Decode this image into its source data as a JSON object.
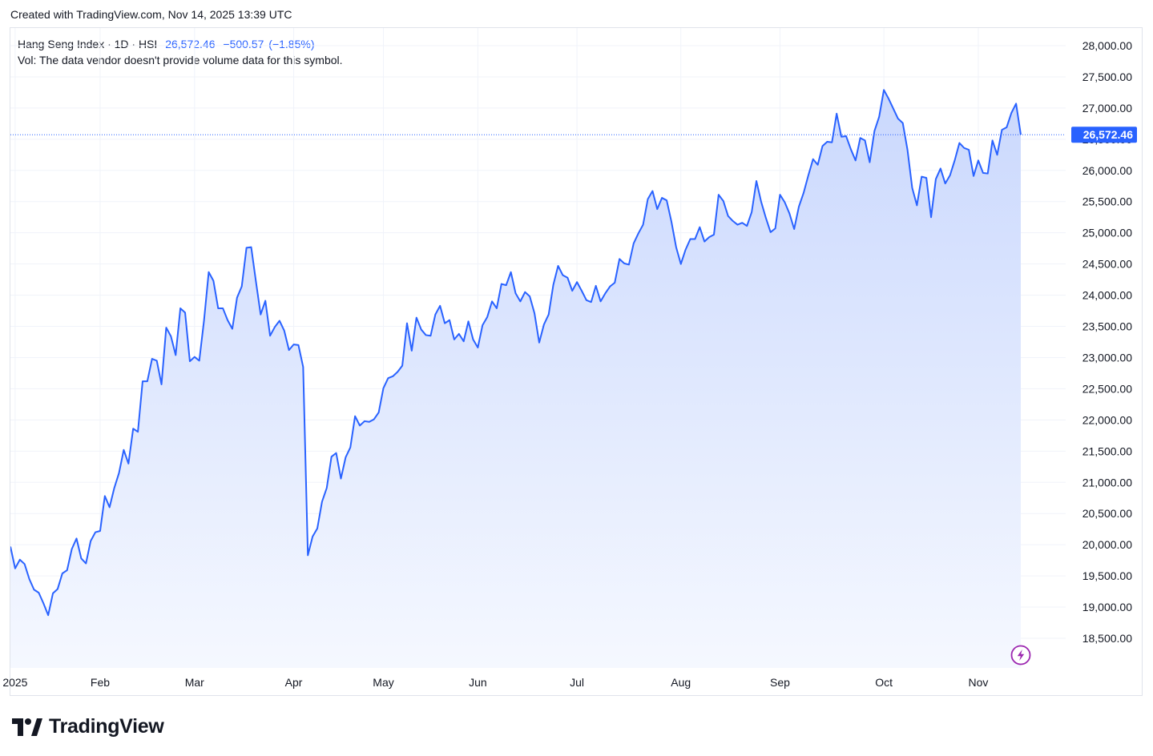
{
  "header": {
    "credit": "Created with TradingView.com, Nov 14, 2025 13:39 UTC"
  },
  "legend": {
    "symbol_line": "Hang Seng Index · 1D · HSI",
    "last": "26,572.46",
    "change": "−500.57",
    "change_pct": "(−1.85%)",
    "volume_note": "Vol: The data vendor doesn't provide volume data for this symbol."
  },
  "price_badge": "26,572.46",
  "brand": {
    "name": "TradingView",
    "logo_icon": "tradingview-logo-icon"
  },
  "realtime_icon": "lightning-icon",
  "colors": {
    "line": "#2962ff",
    "badge": "#2962ff",
    "area_top": "#cfdcfd",
    "area_bottom": "#f3f6ff",
    "grid": "#f0f3fa",
    "realtime": "#9c27b0"
  },
  "chart_data": {
    "type": "area",
    "title": "Hang Seng Index · 1D · HSI",
    "xlabel": "",
    "ylabel": "",
    "ylim": [
      18200,
      28300
    ],
    "grid": true,
    "legend_position": "top-left",
    "y_ticks": [
      18500,
      19000,
      19500,
      20000,
      20500,
      21000,
      21500,
      22000,
      22500,
      23000,
      23500,
      24000,
      24500,
      25000,
      25500,
      26000,
      26500,
      27000,
      27500,
      28000
    ],
    "y_tick_labels": [
      "18,500.00",
      "19,000.00",
      "19,500.00",
      "20,000.00",
      "20,500.00",
      "21,000.00",
      "21,500.00",
      "22,000.00",
      "22,500.00",
      "23,000.00",
      "23,500.00",
      "24,000.00",
      "24,500.00",
      "25,000.00",
      "25,500.00",
      "26,000.00",
      "26,500.00",
      "27,000.00",
      "27,500.00",
      "28,000.00"
    ],
    "x_ticks": [
      {
        "date": "2025-01-02",
        "label": "2025"
      },
      {
        "date": "2025-02-03",
        "label": "Feb"
      },
      {
        "date": "2025-03-03",
        "label": "Mar"
      },
      {
        "date": "2025-04-01",
        "label": "Apr"
      },
      {
        "date": "2025-05-02",
        "label": "May"
      },
      {
        "date": "2025-06-02",
        "label": "Jun"
      },
      {
        "date": "2025-07-02",
        "label": "Jul"
      },
      {
        "date": "2025-08-01",
        "label": "Aug"
      },
      {
        "date": "2025-09-01",
        "label": "Sep"
      },
      {
        "date": "2025-10-02",
        "label": "Oct"
      },
      {
        "date": "2025-11-03",
        "label": "Nov"
      }
    ],
    "last_value": 26572.46,
    "series": [
      {
        "x": [
          "2024-12-31",
          "2025-01-02",
          "2025-01-03",
          "2025-01-06",
          "2025-01-07",
          "2025-01-08",
          "2025-01-09",
          "2025-01-10",
          "2025-01-13",
          "2025-01-14",
          "2025-01-15",
          "2025-01-16",
          "2025-01-17",
          "2025-01-20",
          "2025-01-21",
          "2025-01-22",
          "2025-01-23",
          "2025-01-24",
          "2025-01-27",
          "2025-02-03",
          "2025-02-04",
          "2025-02-05",
          "2025-02-06",
          "2025-02-07",
          "2025-02-10",
          "2025-02-11",
          "2025-02-12",
          "2025-02-13",
          "2025-02-14",
          "2025-02-17",
          "2025-02-18",
          "2025-02-19",
          "2025-02-20",
          "2025-02-21",
          "2025-02-24",
          "2025-02-25",
          "2025-02-26",
          "2025-02-27",
          "2025-02-28",
          "2025-03-03",
          "2025-03-04",
          "2025-03-05",
          "2025-03-06",
          "2025-03-07",
          "2025-03-10",
          "2025-03-11",
          "2025-03-12",
          "2025-03-13",
          "2025-03-14",
          "2025-03-17",
          "2025-03-18",
          "2025-03-19",
          "2025-03-20",
          "2025-03-21",
          "2025-03-24",
          "2025-03-25",
          "2025-03-26",
          "2025-03-27",
          "2025-03-28",
          "2025-03-31",
          "2025-04-01",
          "2025-04-02",
          "2025-04-03",
          "2025-04-07",
          "2025-04-08",
          "2025-04-09",
          "2025-04-10",
          "2025-04-11",
          "2025-04-14",
          "2025-04-15",
          "2025-04-16",
          "2025-04-17",
          "2025-04-22",
          "2025-04-23",
          "2025-04-24",
          "2025-04-25",
          "2025-04-28",
          "2025-04-29",
          "2025-04-30",
          "2025-05-02",
          "2025-05-06",
          "2025-05-07",
          "2025-05-08",
          "2025-05-09",
          "2025-05-12",
          "2025-05-13",
          "2025-05-14",
          "2025-05-15",
          "2025-05-16",
          "2025-05-19",
          "2025-05-20",
          "2025-05-21",
          "2025-05-22",
          "2025-05-23",
          "2025-05-26",
          "2025-05-27",
          "2025-05-28",
          "2025-05-29",
          "2025-05-30",
          "2025-06-02",
          "2025-06-03",
          "2025-06-04",
          "2025-06-05",
          "2025-06-06",
          "2025-06-09",
          "2025-06-10",
          "2025-06-11",
          "2025-06-12",
          "2025-06-13",
          "2025-06-16",
          "2025-06-17",
          "2025-06-18",
          "2025-06-19",
          "2025-06-20",
          "2025-06-23",
          "2025-06-24",
          "2025-06-25",
          "2025-06-26",
          "2025-06-27",
          "2025-06-30",
          "2025-07-02",
          "2025-07-03",
          "2025-07-04",
          "2025-07-07",
          "2025-07-08",
          "2025-07-09",
          "2025-07-10",
          "2025-07-11",
          "2025-07-14",
          "2025-07-15",
          "2025-07-16",
          "2025-07-17",
          "2025-07-18",
          "2025-07-21",
          "2025-07-22",
          "2025-07-23",
          "2025-07-24",
          "2025-07-25",
          "2025-07-28",
          "2025-07-29",
          "2025-07-30",
          "2025-07-31",
          "2025-08-01",
          "2025-08-04",
          "2025-08-05",
          "2025-08-06",
          "2025-08-07",
          "2025-08-08",
          "2025-08-11",
          "2025-08-12",
          "2025-08-13",
          "2025-08-14",
          "2025-08-15",
          "2025-08-18",
          "2025-08-19",
          "2025-08-20",
          "2025-08-21",
          "2025-08-22",
          "2025-08-25",
          "2025-08-26",
          "2025-08-27",
          "2025-08-28",
          "2025-08-29",
          "2025-09-01",
          "2025-09-02",
          "2025-09-03",
          "2025-09-04",
          "2025-09-05",
          "2025-09-08",
          "2025-09-09",
          "2025-09-10",
          "2025-09-11",
          "2025-09-12",
          "2025-09-15",
          "2025-09-16",
          "2025-09-17",
          "2025-09-18",
          "2025-09-19",
          "2025-09-22",
          "2025-09-23",
          "2025-09-24",
          "2025-09-25",
          "2025-09-26",
          "2025-09-29",
          "2025-09-30",
          "2025-10-02",
          "2025-10-03",
          "2025-10-06",
          "2025-10-08",
          "2025-10-09",
          "2025-10-10",
          "2025-10-13",
          "2025-10-14",
          "2025-10-15",
          "2025-10-16",
          "2025-10-17",
          "2025-10-20",
          "2025-10-21",
          "2025-10-22",
          "2025-10-23",
          "2025-10-24",
          "2025-10-27",
          "2025-10-28",
          "2025-10-30",
          "2025-10-31",
          "2025-11-03",
          "2025-11-04",
          "2025-11-05",
          "2025-11-06",
          "2025-11-07",
          "2025-11-10",
          "2025-11-11",
          "2025-11-12",
          "2025-11-13",
          "2025-11-14"
        ],
        "values": [
          19970,
          19620,
          19760,
          19690,
          19450,
          19280,
          19230,
          19060,
          18870,
          19220,
          19290,
          19540,
          19590,
          19930,
          20100,
          19780,
          19700,
          20060,
          20200,
          20220,
          20780,
          20600,
          20910,
          21150,
          21520,
          21300,
          21860,
          21810,
          22620,
          22620,
          22980,
          22950,
          22570,
          23480,
          23340,
          23040,
          23790,
          23720,
          22940,
          23010,
          22950,
          23590,
          24370,
          24230,
          23790,
          23790,
          23600,
          23460,
          23960,
          24140,
          24760,
          24770,
          24220,
          23690,
          23910,
          23350,
          23490,
          23590,
          23430,
          23120,
          23210,
          23200,
          22850,
          19830,
          20130,
          20260,
          20690,
          20910,
          21410,
          21470,
          21060,
          21400,
          21560,
          22060,
          21910,
          21980,
          21970,
          22010,
          22120,
          22510,
          22670,
          22700,
          22770,
          22870,
          23550,
          23110,
          23640,
          23450,
          23360,
          23350,
          23690,
          23830,
          23550,
          23600,
          23290,
          23380,
          23260,
          23580,
          23290,
          23160,
          23520,
          23650,
          23900,
          23790,
          24180,
          24160,
          24370,
          24030,
          23900,
          24050,
          23980,
          23710,
          23240,
          23530,
          23690,
          24170,
          24470,
          24320,
          24280,
          24070,
          24210,
          24070,
          23920,
          23890,
          24150,
          23900,
          24030,
          24140,
          24200,
          24580,
          24510,
          24490,
          24830,
          24990,
          25130,
          25540,
          25670,
          25380,
          25560,
          25520,
          25180,
          24770,
          24500,
          24730,
          24900,
          24900,
          25090,
          24860,
          24930,
          24970,
          25610,
          25510,
          25270,
          25190,
          25130,
          25160,
          25110,
          25330,
          25830,
          25500,
          25240,
          25010,
          25070,
          25610,
          25490,
          25310,
          25060,
          25420,
          25640,
          25920,
          26180,
          26090,
          26390,
          26460,
          26450,
          26910,
          26540,
          26550,
          26340,
          26160,
          26520,
          26480,
          26130,
          26630,
          26860,
          27290,
          27150,
          26990,
          26830,
          26760,
          26330,
          25720,
          25440,
          25900,
          25880,
          25250,
          25860,
          26030,
          25790,
          25920,
          26160,
          26440,
          26360,
          26330,
          25910,
          26160,
          25960,
          25950,
          26480,
          26250,
          26650,
          26690,
          26920,
          27070,
          26572.46
        ]
      }
    ]
  }
}
